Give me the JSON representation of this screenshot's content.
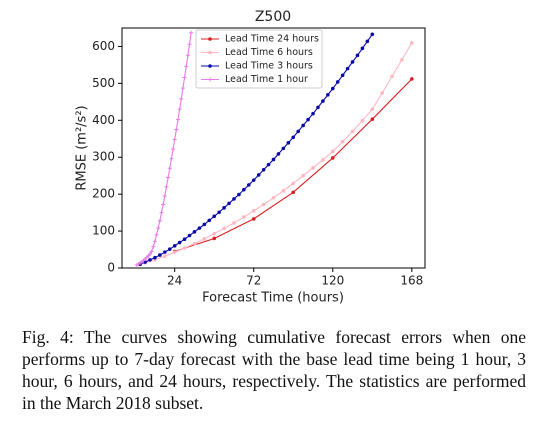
{
  "chart_data": {
    "type": "line",
    "title": "Z500",
    "xlabel": "Forecast Time (hours)",
    "ylabel": "RMSE (m²/s²)",
    "xlim": [
      -8,
      176
    ],
    "ylim": [
      0,
      650
    ],
    "xticks": [
      24,
      72,
      120,
      168
    ],
    "yticks": [
      0,
      100,
      200,
      300,
      400,
      500,
      600
    ],
    "legend": "upper left",
    "series": [
      {
        "name": "Lead Time 24 hours",
        "color": "#d62020",
        "marker": "dot",
        "x": [
          24,
          48,
          72,
          96,
          120,
          144,
          168
        ],
        "values": [
          45,
          80,
          133,
          205,
          298,
          403,
          512
        ]
      },
      {
        "name": "Lead Time 6 hours",
        "color": "#ffb6c1",
        "marker": "dot",
        "x": [
          6,
          12,
          18,
          24,
          30,
          36,
          42,
          48,
          54,
          60,
          66,
          72,
          78,
          84,
          90,
          96,
          102,
          108,
          114,
          120,
          126,
          132,
          138,
          144,
          150,
          156,
          162,
          168
        ],
        "values": [
          14,
          22,
          32,
          43,
          54,
          66,
          79,
          93,
          107,
          122,
          138,
          155,
          172,
          190,
          209,
          229,
          250,
          271,
          293,
          316,
          342,
          370,
          399,
          430,
          474,
          519,
          564,
          610
        ]
      },
      {
        "name": "Lead Time 3 hours",
        "color": "#0a0aa8",
        "marker": "dot",
        "x": [
          3,
          6,
          9,
          12,
          15,
          18,
          21,
          24,
          27,
          30,
          33,
          36,
          39,
          42,
          45,
          48,
          51,
          54,
          57,
          60,
          63,
          66,
          69,
          72,
          75,
          78,
          81,
          84,
          87,
          90,
          93,
          96,
          99,
          102,
          105,
          108,
          111,
          114,
          117,
          120,
          123,
          126,
          129,
          132,
          135,
          138,
          141,
          144
        ],
        "values": [
          10,
          16,
          22,
          28,
          35,
          43,
          51,
          60,
          69,
          78,
          88,
          98,
          108,
          118,
          129,
          140,
          151,
          163,
          175,
          187,
          199,
          212,
          225,
          238,
          252,
          266,
          280,
          294,
          309,
          324,
          339,
          354,
          370,
          386,
          402,
          418,
          435,
          452,
          469,
          486,
          504,
          522,
          540,
          558,
          576,
          595,
          614,
          633
        ]
      },
      {
        "name": "Lead Time 1 hour",
        "color": "#e67ee6",
        "marker": "plus",
        "x": [
          1,
          2,
          3,
          4,
          5,
          6,
          7,
          8,
          9,
          10,
          11,
          12,
          13,
          14,
          15,
          16,
          17,
          18,
          19,
          20,
          21,
          22,
          23,
          24,
          25,
          26,
          27,
          28,
          29,
          30,
          31,
          32,
          33,
          34
        ],
        "values": [
          8,
          11,
          14,
          17,
          20,
          24,
          28,
          33,
          38,
          45,
          58,
          72,
          90,
          108,
          128,
          150,
          172,
          195,
          220,
          245,
          270,
          296,
          322,
          348,
          375,
          402,
          430,
          458,
          487,
          516,
          546,
          576,
          606,
          637
        ]
      }
    ]
  },
  "caption": "Fig. 4: The curves showing cumulative forecast errors when one performs up to 7-day forecast with the base lead time being 1 hour, 3 hour, 6 hours, and 24 hours, respectively. The statistics are performed in the March 2018 subset."
}
